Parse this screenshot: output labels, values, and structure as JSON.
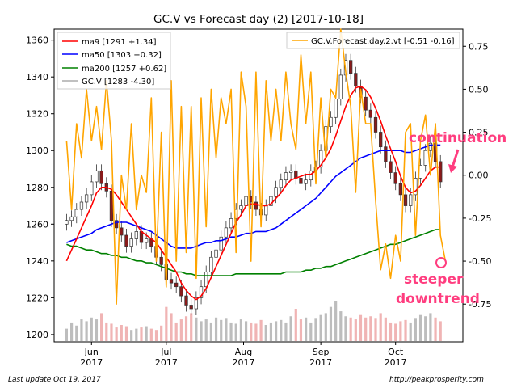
{
  "chart_data": {
    "type": "candlestick-line",
    "title": "GC.V vs Forecast day (2)  [2017-10-18]",
    "footer_left": "Last update Oct 19, 2017",
    "footer_right": "http://peakprosperity.com",
    "x_tick_labels": [
      {
        "month": "Jun",
        "year": "2017",
        "date": "2017-06-01"
      },
      {
        "month": "Jul",
        "year": "2017",
        "date": "2017-07-01"
      },
      {
        "month": "Aug",
        "year": "2017",
        "date": "2017-08-01"
      },
      {
        "month": "Sep",
        "year": "2017",
        "date": "2017-09-01"
      },
      {
        "month": "Oct",
        "year": "2017",
        "date": "2017-10-01"
      }
    ],
    "x_range": [
      "2017-05-17",
      "2017-10-28"
    ],
    "left_axis": {
      "ylim": [
        1196,
        1366
      ],
      "ticks": [
        1200,
        1220,
        1240,
        1260,
        1280,
        1300,
        1320,
        1340,
        1360
      ]
    },
    "right_axis": {
      "ylim": [
        -0.97,
        0.85
      ],
      "ticks": [
        0.75,
        0.5,
        0.25,
        0.0,
        -0.25,
        -0.5,
        -0.75
      ],
      "tick_labels": [
        "0.75",
        "0.50",
        "0.25",
        "0.00",
        "-0.25",
        "-0.50",
        "-0.75"
      ]
    },
    "legend_left": [
      {
        "label": "ma9 [1291 +1.34]",
        "color": "#ff0000"
      },
      {
        "label": "ma50 [1303 +0.32]",
        "color": "#0000ff"
      },
      {
        "label": "ma200 [1257 +0.62]",
        "color": "#008000"
      },
      {
        "label": "GC.V [1283 -4.30]",
        "color": "#808080"
      }
    ],
    "legend_right": [
      {
        "label": "GC.V.Forecast.day.2.vt [-0.51 -0.16]",
        "color": "#ffa500"
      }
    ],
    "annotations": [
      {
        "text": "continuation",
        "color": "#ff3d7f"
      },
      {
        "text": "steeper",
        "color": "#ff3d7f"
      },
      {
        "text": "downtrend",
        "color": "#ff3d7f"
      }
    ],
    "colors": {
      "up": "#ffffff",
      "down": "#8b1a1a",
      "wick": "#333333",
      "volume_up": "#bdbdbd",
      "volume_down": "#f0b4b4",
      "ma9": "#ff0000",
      "ma50": "#0000ff",
      "ma200": "#008000",
      "forecast": "#ffa500"
    },
    "price_x": [
      0,
      2,
      4,
      6,
      8,
      10,
      12,
      14,
      16,
      18,
      20,
      22,
      24,
      26,
      28,
      30,
      32,
      34,
      36,
      38,
      40,
      42,
      44,
      46,
      48,
      50,
      52,
      54,
      56,
      58,
      60,
      62,
      64,
      66,
      68,
      70,
      72,
      74,
      76,
      78,
      80,
      82,
      84,
      86,
      88,
      90,
      92,
      94,
      96,
      98,
      100,
      102,
      104,
      106,
      108,
      110,
      112,
      114,
      116,
      118,
      120,
      122,
      124,
      126,
      128,
      130,
      132,
      134,
      136,
      138,
      140,
      142,
      144,
      146,
      148,
      150
    ],
    "close": [
      1262,
      1264,
      1268,
      1272,
      1276,
      1283,
      1289,
      1282,
      1278,
      1262,
      1258,
      1254,
      1248,
      1252,
      1256,
      1250,
      1252,
      1248,
      1242,
      1238,
      1230,
      1228,
      1226,
      1221,
      1216,
      1214,
      1220,
      1226,
      1234,
      1242,
      1246,
      1253,
      1258,
      1263,
      1268,
      1270,
      1275,
      1272,
      1268,
      1265,
      1270,
      1275,
      1280,
      1284,
      1288,
      1289,
      1285,
      1282,
      1284,
      1289,
      1291,
      1300,
      1313,
      1318,
      1328,
      1341,
      1349,
      1342,
      1335,
      1329,
      1322,
      1318,
      1310,
      1302,
      1294,
      1288,
      1282,
      1276,
      1270,
      1276,
      1285,
      1292,
      1300,
      1304,
      1294,
      1283
    ],
    "volume": [
      20,
      30,
      25,
      35,
      32,
      38,
      35,
      45,
      30,
      28,
      22,
      26,
      24,
      18,
      20,
      22,
      24,
      20,
      18,
      25,
      55,
      45,
      30,
      35,
      40,
      45,
      38,
      32,
      35,
      30,
      38,
      34,
      36,
      30,
      28,
      35,
      32,
      30,
      28,
      34,
      26,
      30,
      32,
      34,
      30,
      40,
      52,
      35,
      38,
      30,
      36,
      42,
      45,
      55,
      65,
      48,
      40,
      38,
      35,
      42,
      38,
      40,
      36,
      45,
      38,
      30,
      28,
      32,
      34,
      30,
      36,
      42,
      40,
      45,
      38,
      32
    ],
    "ma9": [
      1240,
      1246,
      1252,
      1258,
      1264,
      1270,
      1277,
      1280,
      1280,
      1279,
      1276,
      1272,
      1268,
      1264,
      1260,
      1256,
      1254,
      1252,
      1250,
      1246,
      1242,
      1238,
      1234,
      1228,
      1224,
      1221,
      1219,
      1221,
      1225,
      1231,
      1237,
      1243,
      1249,
      1255,
      1261,
      1265,
      1270,
      1271,
      1271,
      1270,
      1270,
      1271,
      1274,
      1277,
      1281,
      1284,
      1285,
      1286,
      1287,
      1287,
      1289,
      1292,
      1296,
      1301,
      1308,
      1316,
      1324,
      1330,
      1334,
      1335,
      1333,
      1329,
      1323,
      1316,
      1308,
      1301,
      1294,
      1286,
      1280,
      1277,
      1278,
      1281,
      1285,
      1289,
      1291,
      1291
    ],
    "ma50": [
      1250,
      1251,
      1252,
      1253,
      1254,
      1255,
      1257,
      1258,
      1259,
      1260,
      1261,
      1261,
      1261,
      1260,
      1259,
      1258,
      1257,
      1256,
      1254,
      1252,
      1250,
      1248,
      1247,
      1247,
      1247,
      1247,
      1248,
      1249,
      1250,
      1250,
      1251,
      1251,
      1252,
      1253,
      1253,
      1254,
      1255,
      1255,
      1256,
      1256,
      1256,
      1257,
      1258,
      1260,
      1262,
      1264,
      1266,
      1268,
      1270,
      1272,
      1274,
      1277,
      1280,
      1283,
      1286,
      1288,
      1290,
      1292,
      1294,
      1296,
      1297,
      1298,
      1299,
      1300,
      1300,
      1300,
      1300,
      1300,
      1299,
      1299,
      1300,
      1301,
      1302,
      1303,
      1303,
      1303
    ],
    "ma200": [
      1249,
      1248,
      1248,
      1247,
      1246,
      1246,
      1245,
      1244,
      1244,
      1243,
      1243,
      1242,
      1242,
      1241,
      1240,
      1240,
      1239,
      1239,
      1238,
      1237,
      1236,
      1235,
      1234,
      1234,
      1233,
      1233,
      1232,
      1232,
      1232,
      1232,
      1232,
      1232,
      1232,
      1232,
      1233,
      1233,
      1233,
      1233,
      1233,
      1233,
      1233,
      1233,
      1233,
      1233,
      1234,
      1234,
      1234,
      1234,
      1235,
      1235,
      1236,
      1236,
      1237,
      1237,
      1238,
      1239,
      1240,
      1241,
      1242,
      1243,
      1244,
      1245,
      1246,
      1247,
      1248,
      1249,
      1249,
      1250,
      1251,
      1252,
      1253,
      1254,
      1255,
      1256,
      1257,
      1257
    ],
    "forecast": {
      "x": [
        0,
        2,
        4,
        6,
        8,
        10,
        12,
        14,
        16,
        18,
        20,
        22,
        24,
        26,
        28,
        30,
        32,
        34,
        36,
        38,
        40,
        42,
        44,
        46,
        48,
        50,
        52,
        54,
        56,
        58,
        60,
        62,
        64,
        66,
        68,
        70,
        72,
        74,
        76,
        78,
        80,
        82,
        84,
        86,
        88,
        90,
        92,
        94,
        96,
        98,
        100,
        102,
        104,
        106,
        108,
        110,
        112,
        114,
        116,
        118,
        120,
        122,
        124,
        126,
        128,
        130,
        132,
        134,
        136,
        138,
        140,
        142,
        144,
        146,
        148,
        150,
        152
      ],
      "values": [
        0.2,
        -0.2,
        0.3,
        0.1,
        0.5,
        0.2,
        0.4,
        0.15,
        0.55,
        0.2,
        -0.75,
        0.0,
        -0.2,
        0.3,
        -0.2,
        0.0,
        -0.1,
        0.45,
        -0.5,
        0.25,
        -0.65,
        0.55,
        -0.5,
        0.4,
        -0.45,
        0.4,
        -0.6,
        0.45,
        -0.3,
        0.5,
        0.1,
        0.45,
        0.3,
        0.5,
        -0.45,
        0.6,
        0.4,
        -0.5,
        0.6,
        -0.3,
        0.55,
        0.2,
        0.5,
        0.2,
        0.6,
        0.3,
        0.15,
        0.7,
        0.3,
        0.6,
        -0.05,
        0.45,
        0.1,
        0.5,
        0.45,
        0.85,
        0.6,
        0.4,
        -0.1,
        0.5,
        0.3,
        0.3,
        -0.15,
        -0.55,
        -0.4,
        -0.6,
        -0.35,
        -0.5,
        0.25,
        0.3,
        -0.35,
        0.2,
        0.35,
        0.0,
        0.3,
        -0.35,
        -0.5
      ]
    }
  }
}
